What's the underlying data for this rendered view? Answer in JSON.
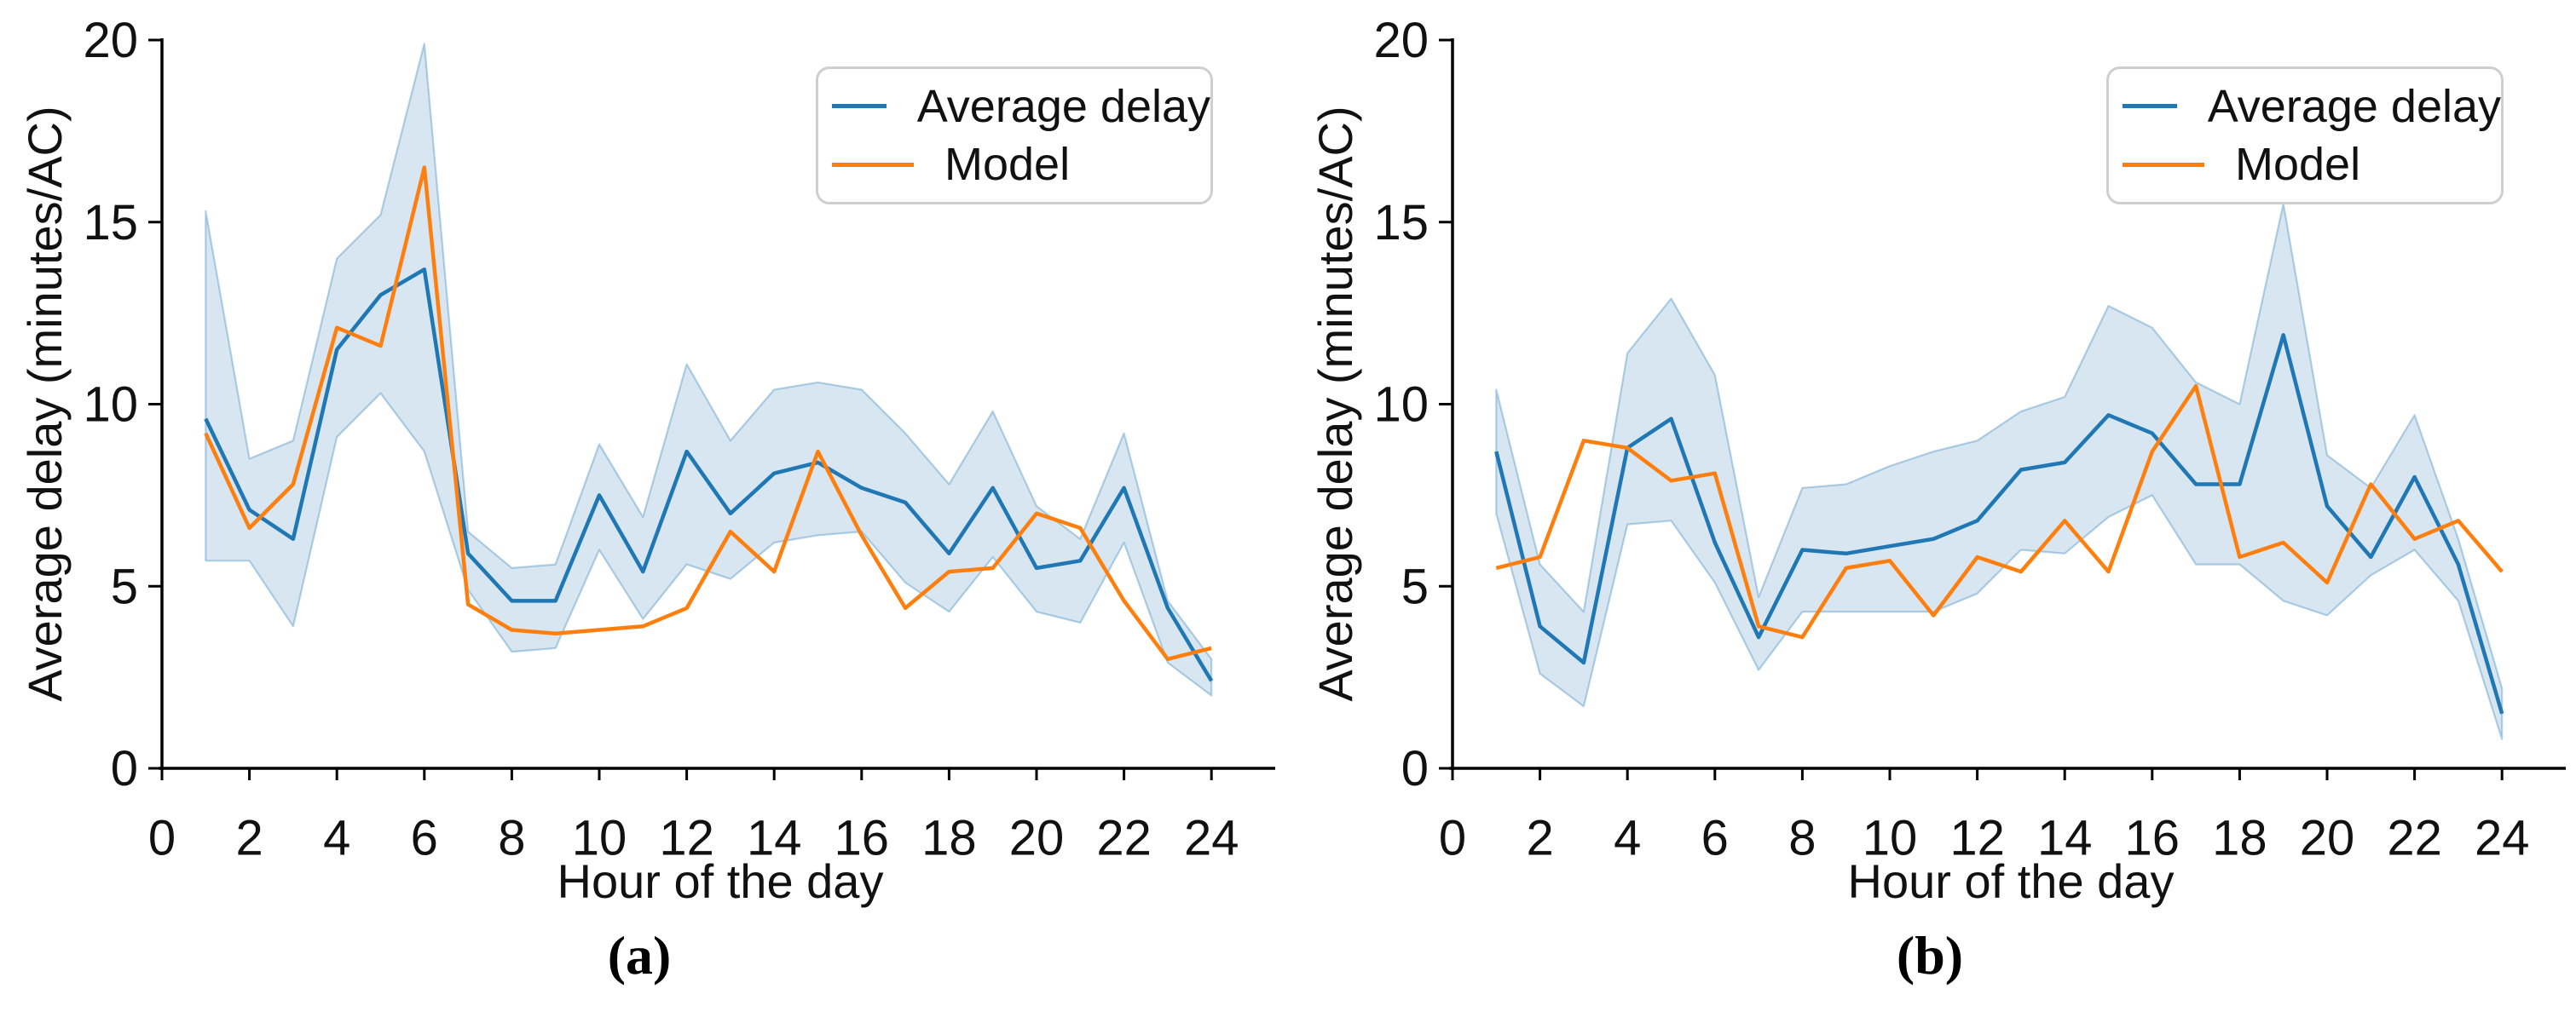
{
  "figure": {
    "background": "#ffffff",
    "text_color": "#111111",
    "axis_color": "#000000",
    "band_color": "#1f77b4",
    "band_opacity": 0.18
  },
  "chart_data": [
    {
      "id": "a",
      "type": "line",
      "caption": "(a)",
      "xlabel": "Hour of the day",
      "ylabel": "Average delay (minutes/AC)",
      "xlim": [
        0,
        25.4
      ],
      "ylim": [
        0,
        20
      ],
      "xticks": [
        0,
        2,
        4,
        6,
        8,
        10,
        12,
        14,
        16,
        18,
        20,
        22,
        24
      ],
      "yticks": [
        0,
        5,
        10,
        15,
        20
      ],
      "grid": false,
      "legend_position": "upper right",
      "legend": [
        {
          "label": "Average delay",
          "color": "#1f77b4"
        },
        {
          "label": "Model",
          "color": "#ff7f0e"
        }
      ],
      "x": [
        1,
        2,
        3,
        4,
        5,
        6,
        7,
        8,
        9,
        10,
        11,
        12,
        13,
        14,
        15,
        16,
        17,
        18,
        19,
        20,
        21,
        22,
        23,
        24
      ],
      "series": [
        {
          "name": "Average delay",
          "color": "#1f77b4",
          "values": [
            9.6,
            7.1,
            6.3,
            11.5,
            13.0,
            13.7,
            5.9,
            4.6,
            4.6,
            7.5,
            5.4,
            8.7,
            7.0,
            8.1,
            8.4,
            7.7,
            7.3,
            5.9,
            7.7,
            5.5,
            5.7,
            7.7,
            4.4,
            2.4
          ]
        },
        {
          "name": "Model",
          "color": "#ff7f0e",
          "values": [
            9.2,
            6.6,
            7.8,
            12.1,
            11.6,
            16.5,
            4.5,
            3.8,
            3.7,
            3.8,
            3.9,
            4.4,
            6.5,
            5.4,
            8.7,
            6.4,
            4.4,
            5.4,
            5.5,
            7.0,
            6.6,
            4.6,
            3.0,
            3.3
          ]
        }
      ],
      "band": {
        "attached_to": "Average delay",
        "lower": [
          5.7,
          5.7,
          3.9,
          9.1,
          10.3,
          8.7,
          4.9,
          3.2,
          3.3,
          6.0,
          4.1,
          5.6,
          5.2,
          6.2,
          6.4,
          6.5,
          5.1,
          4.3,
          5.8,
          4.3,
          4.0,
          6.2,
          2.9,
          2.0
        ],
        "upper": [
          15.3,
          8.5,
          9.0,
          14.0,
          15.2,
          19.9,
          6.5,
          5.5,
          5.6,
          8.9,
          6.9,
          11.1,
          9.0,
          10.4,
          10.6,
          10.4,
          9.2,
          7.8,
          9.8,
          7.2,
          6.3,
          9.2,
          4.6,
          3.0
        ]
      }
    },
    {
      "id": "b",
      "type": "line",
      "caption": "(b)",
      "xlabel": "Hour of the day",
      "ylabel": "Average delay (minutes/AC)",
      "xlim": [
        0,
        25.4
      ],
      "ylim": [
        0,
        20
      ],
      "xticks": [
        0,
        2,
        4,
        6,
        8,
        10,
        12,
        14,
        16,
        18,
        20,
        22,
        24
      ],
      "yticks": [
        0,
        5,
        10,
        15,
        20
      ],
      "grid": false,
      "legend_position": "upper right",
      "legend": [
        {
          "label": "Average delay",
          "color": "#1f77b4"
        },
        {
          "label": "Model",
          "color": "#ff7f0e"
        }
      ],
      "x": [
        1,
        2,
        3,
        4,
        5,
        6,
        7,
        8,
        9,
        10,
        11,
        12,
        13,
        14,
        15,
        16,
        17,
        18,
        19,
        20,
        21,
        22,
        23,
        24
      ],
      "series": [
        {
          "name": "Average delay",
          "color": "#1f77b4",
          "values": [
            8.7,
            3.9,
            2.9,
            8.8,
            9.6,
            6.2,
            3.6,
            6.0,
            5.9,
            6.1,
            6.3,
            6.8,
            8.2,
            8.4,
            9.7,
            9.2,
            7.8,
            7.8,
            11.9,
            7.2,
            5.8,
            8.0,
            5.6,
            1.5
          ]
        },
        {
          "name": "Model",
          "color": "#ff7f0e",
          "values": [
            5.5,
            5.8,
            9.0,
            8.8,
            7.9,
            8.1,
            3.9,
            3.6,
            5.5,
            5.7,
            4.2,
            5.8,
            5.4,
            6.8,
            5.4,
            8.7,
            10.5,
            5.8,
            6.2,
            5.1,
            7.8,
            6.3,
            6.8,
            5.4
          ]
        }
      ],
      "band": {
        "attached_to": "Average delay",
        "lower": [
          7.0,
          2.6,
          1.7,
          6.7,
          6.8,
          5.1,
          2.7,
          4.3,
          4.3,
          4.3,
          4.3,
          4.8,
          6.0,
          5.9,
          6.9,
          7.5,
          5.6,
          5.6,
          4.6,
          4.2,
          5.3,
          6.0,
          4.6,
          0.8
        ],
        "upper": [
          10.4,
          5.6,
          4.3,
          11.4,
          12.9,
          10.8,
          4.7,
          7.7,
          7.8,
          8.3,
          8.7,
          9.0,
          9.8,
          10.2,
          12.7,
          12.1,
          10.6,
          10.0,
          15.5,
          8.6,
          7.7,
          9.7,
          6.3,
          2.2
        ]
      }
    }
  ]
}
